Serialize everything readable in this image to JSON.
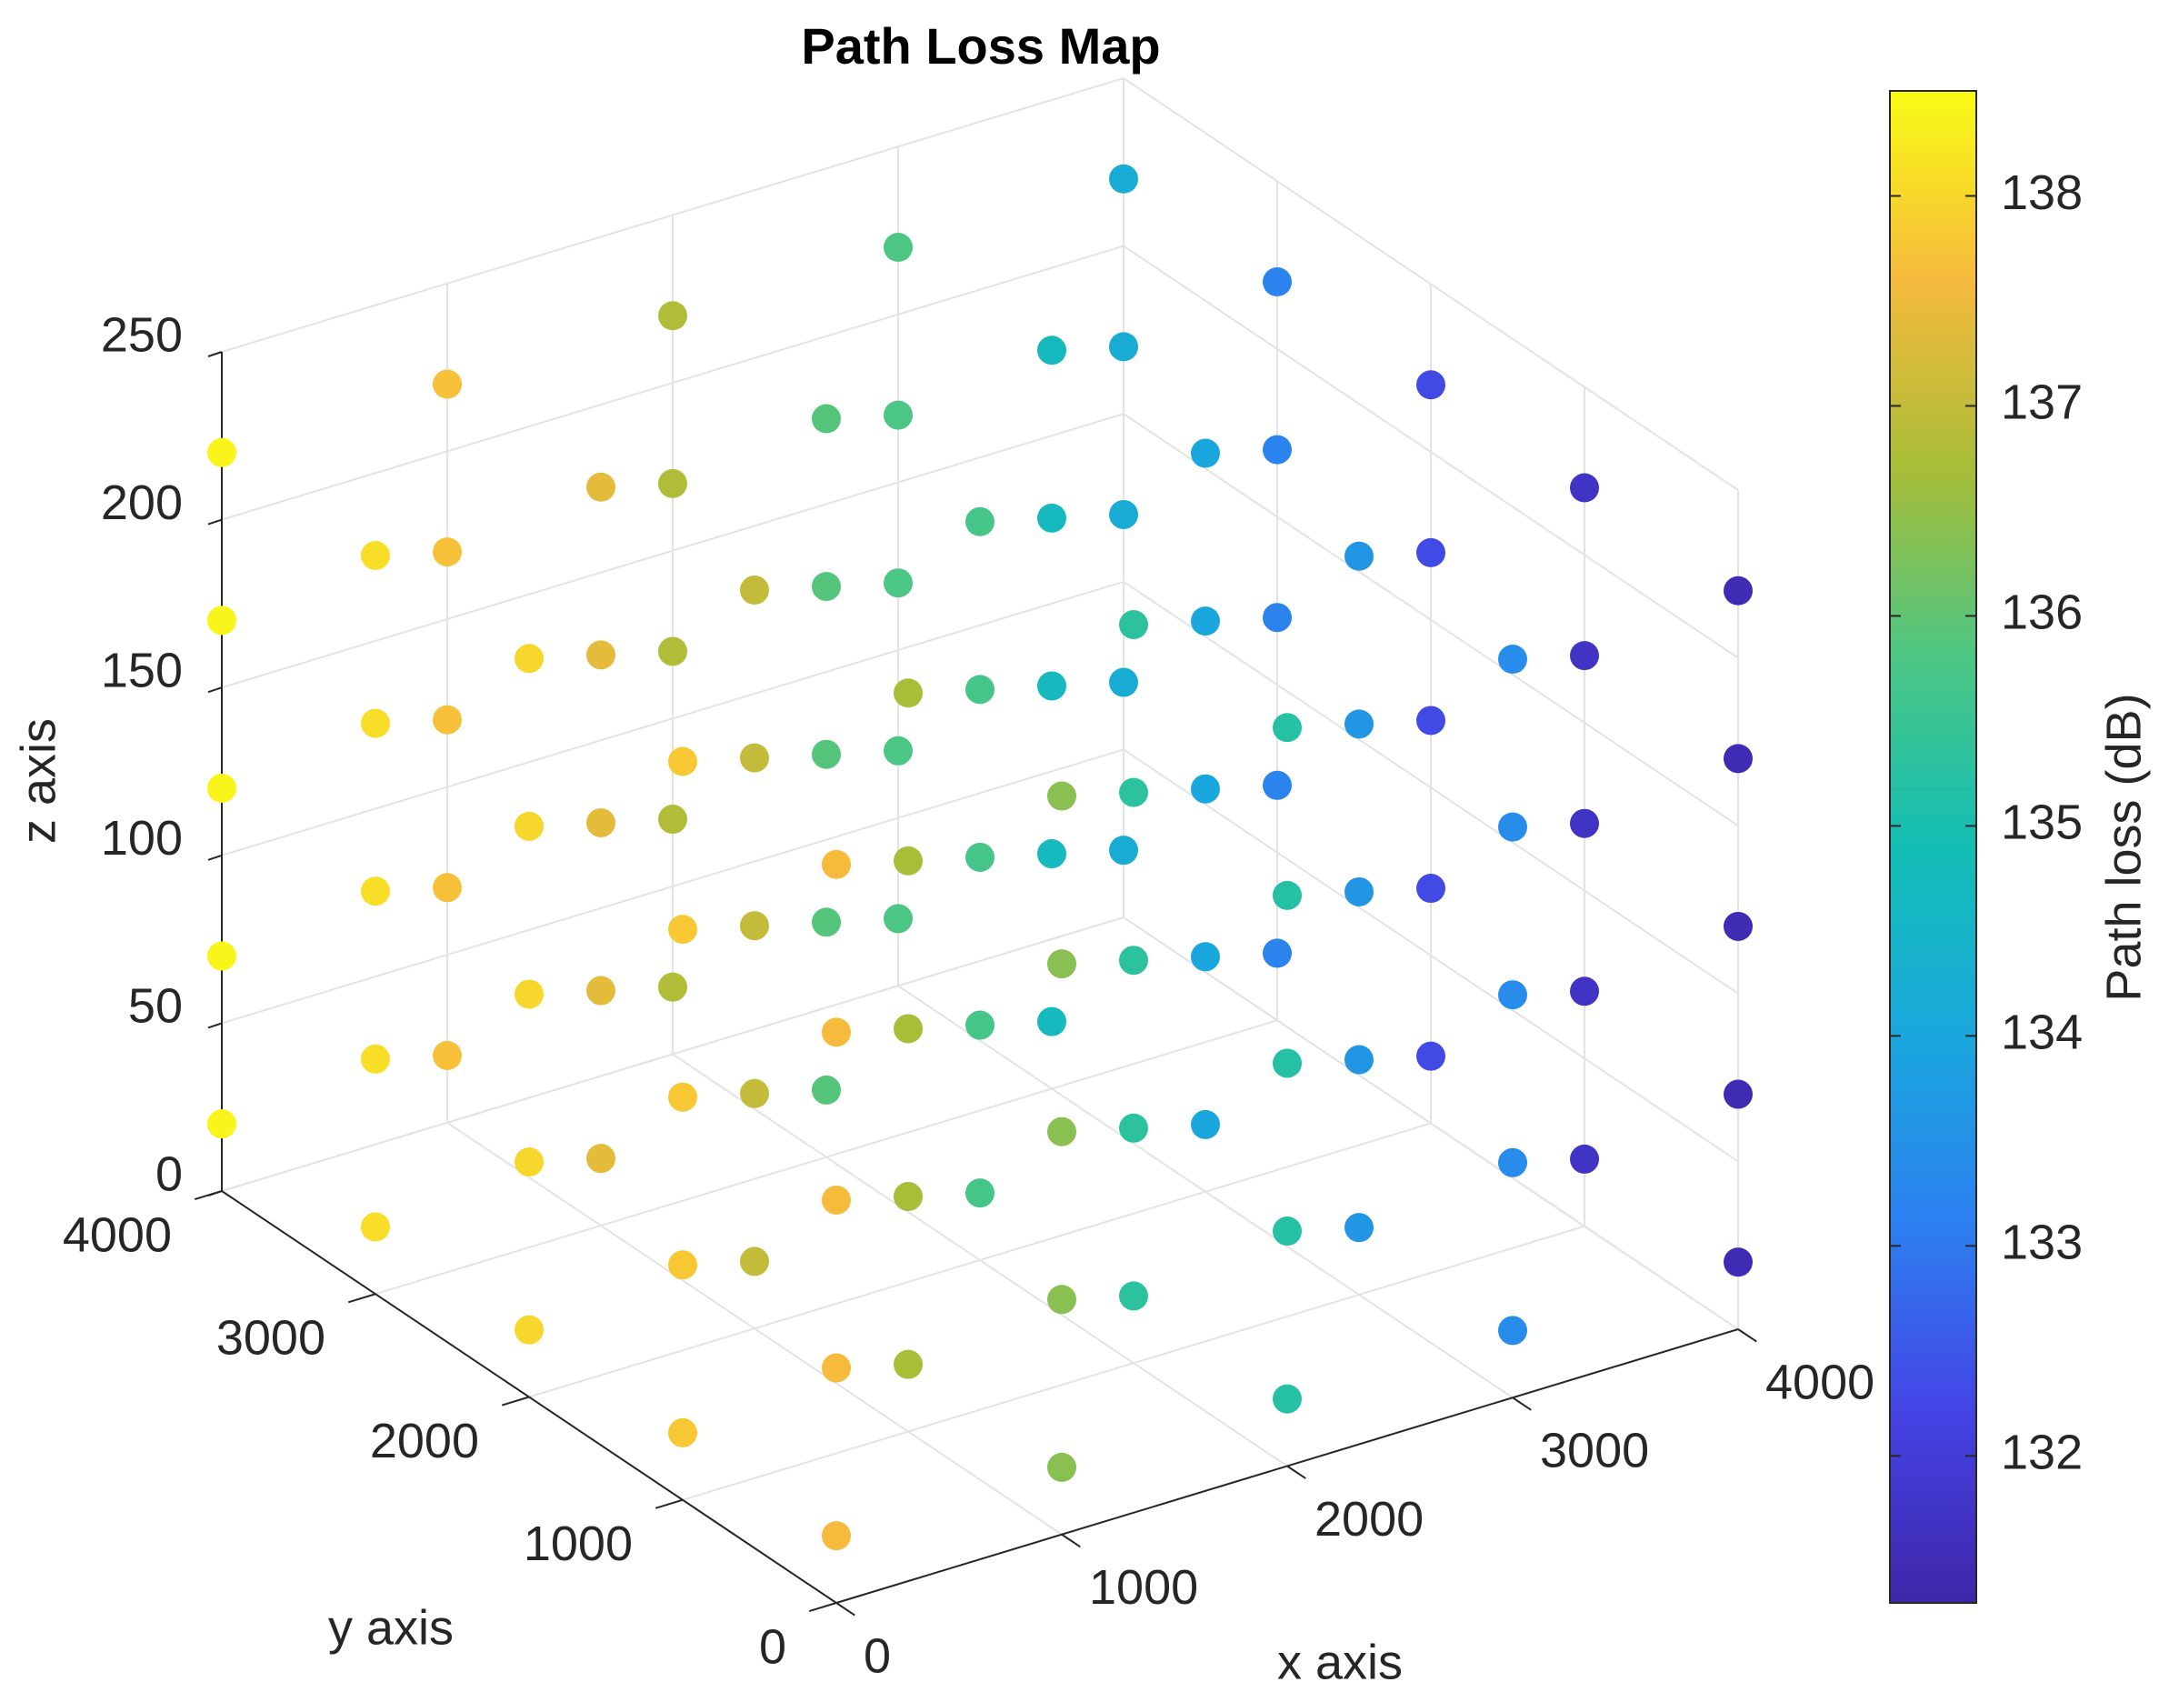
{
  "chart_data": {
    "type": "scatter3d",
    "title": "Path Loss Map",
    "xlabel": "x axis",
    "ylabel": "y axis",
    "zlabel": "z axis",
    "x": [
      0,
      1000,
      2000,
      3000,
      4000,
      0,
      1000,
      2000,
      3000,
      4000,
      0,
      1000,
      2000,
      3000,
      4000,
      0,
      1000,
      2000,
      3000,
      4000,
      0,
      1000,
      2000,
      3000,
      4000,
      0,
      1000,
      2000,
      3000,
      4000,
      0,
      1000,
      2000,
      3000,
      4000,
      0,
      1000,
      2000,
      3000,
      4000,
      0,
      1000,
      2000,
      3000,
      4000,
      0,
      1000,
      2000,
      3000,
      4000,
      0,
      1000,
      2000,
      3000,
      4000,
      0,
      1000,
      2000,
      3000,
      4000,
      0,
      1000,
      2000,
      3000,
      4000,
      0,
      1000,
      2000,
      3000,
      4000,
      0,
      1000,
      2000,
      3000,
      4000,
      0,
      1000,
      2000,
      3000,
      4000,
      0,
      1000,
      2000,
      3000,
      4000,
      0,
      1000,
      2000,
      3000,
      4000,
      0,
      1000,
      2000,
      3000,
      4000,
      0,
      1000,
      2000,
      3000,
      4000,
      0,
      1000,
      2000,
      3000,
      4000,
      0,
      1000,
      2000,
      3000,
      4000,
      0,
      1000,
      2000,
      3000,
      4000,
      0,
      1000,
      2000,
      3000,
      4000,
      0,
      1000,
      2000,
      3000,
      4000
    ],
    "y": [
      0,
      0,
      0,
      0,
      0,
      1000,
      1000,
      1000,
      1000,
      1000,
      2000,
      2000,
      2000,
      2000,
      2000,
      3000,
      3000,
      3000,
      3000,
      3000,
      4000,
      4000,
      4000,
      4000,
      4000,
      0,
      0,
      0,
      0,
      0,
      1000,
      1000,
      1000,
      1000,
      1000,
      2000,
      2000,
      2000,
      2000,
      2000,
      3000,
      3000,
      3000,
      3000,
      3000,
      4000,
      4000,
      4000,
      4000,
      4000,
      0,
      0,
      0,
      0,
      0,
      1000,
      1000,
      1000,
      1000,
      1000,
      2000,
      2000,
      2000,
      2000,
      2000,
      3000,
      3000,
      3000,
      3000,
      3000,
      4000,
      4000,
      4000,
      4000,
      4000,
      0,
      0,
      0,
      0,
      0,
      1000,
      1000,
      1000,
      1000,
      1000,
      2000,
      2000,
      2000,
      2000,
      2000,
      3000,
      3000,
      3000,
      3000,
      3000,
      4000,
      4000,
      4000,
      4000,
      4000,
      0,
      0,
      0,
      0,
      0,
      1000,
      1000,
      1000,
      1000,
      1000,
      2000,
      2000,
      2000,
      2000,
      2000,
      3000,
      3000,
      3000,
      3000,
      3000,
      4000,
      4000,
      4000,
      4000,
      4000
    ],
    "z": [
      20,
      20,
      20,
      20,
      20,
      20,
      20,
      20,
      20,
      20,
      20,
      20,
      20,
      20,
      20,
      20,
      20,
      20,
      20,
      20,
      20,
      20,
      20,
      20,
      20,
      70,
      70,
      70,
      70,
      70,
      70,
      70,
      70,
      70,
      70,
      70,
      70,
      70,
      70,
      70,
      70,
      70,
      70,
      70,
      70,
      70,
      70,
      70,
      70,
      70,
      120,
      120,
      120,
      120,
      120,
      120,
      120,
      120,
      120,
      120,
      120,
      120,
      120,
      120,
      120,
      120,
      120,
      120,
      120,
      120,
      120,
      120,
      120,
      120,
      120,
      170,
      170,
      170,
      170,
      170,
      170,
      170,
      170,
      170,
      170,
      170,
      170,
      170,
      170,
      170,
      170,
      170,
      170,
      170,
      170,
      170,
      170,
      170,
      170,
      170,
      220,
      220,
      220,
      220,
      220,
      220,
      220,
      220,
      220,
      220,
      220,
      220,
      220,
      220,
      220,
      220,
      220,
      220,
      220,
      220,
      220,
      220,
      220,
      220,
      220
    ],
    "values": [
      137.6,
      136.4,
      135.2,
      133.4,
      131.5,
      137.8,
      136.7,
      135.3,
      133.6,
      131.7,
      138,
      137,
      135.7,
      134,
      132.3,
      138.1,
      137.4,
      135.9,
      134.7,
      133.2,
      138.4,
      137.7,
      136.8,
      135.8,
      134.2,
      137.6,
      136.4,
      135.2,
      133.4,
      131.5,
      137.8,
      136.7,
      135.3,
      133.6,
      131.7,
      138,
      137,
      135.7,
      134,
      132.3,
      138.1,
      137.4,
      135.9,
      134.7,
      133.2,
      138.4,
      137.7,
      136.8,
      135.8,
      134.2,
      137.6,
      136.4,
      135.2,
      133.4,
      131.5,
      137.8,
      136.7,
      135.3,
      133.6,
      131.7,
      138,
      137,
      135.7,
      134,
      132.3,
      138.1,
      137.4,
      135.9,
      134.7,
      133.2,
      138.4,
      137.7,
      136.8,
      135.8,
      134.2,
      137.6,
      136.4,
      135.2,
      133.4,
      131.5,
      137.8,
      136.7,
      135.3,
      133.6,
      131.7,
      138,
      137,
      135.7,
      134,
      132.3,
      138.1,
      137.4,
      135.9,
      134.7,
      133.2,
      138.4,
      137.7,
      136.8,
      135.8,
      134.2,
      137.6,
      136.4,
      135.2,
      133.4,
      131.5,
      137.8,
      136.7,
      135.3,
      133.6,
      131.7,
      138,
      137,
      135.7,
      134,
      132.3,
      138.1,
      137.4,
      135.9,
      134.7,
      133.2,
      138.4,
      137.7,
      136.8,
      135.8,
      134.2
    ],
    "xlim": [
      0,
      4000
    ],
    "xticks": [
      0,
      1000,
      2000,
      3000,
      4000
    ],
    "ylim": [
      0,
      4000
    ],
    "yticks": [
      0,
      1000,
      2000,
      3000,
      4000
    ],
    "zlim": [
      0,
      250
    ],
    "zticks": [
      0,
      50,
      100,
      150,
      200,
      250
    ],
    "grid": true,
    "colormap": "parula",
    "colorbar": {
      "label": "Path loss (dB)",
      "clim": [
        131.3,
        138.5
      ],
      "ticks": [
        132,
        133,
        134,
        135,
        136,
        137,
        138
      ]
    }
  }
}
